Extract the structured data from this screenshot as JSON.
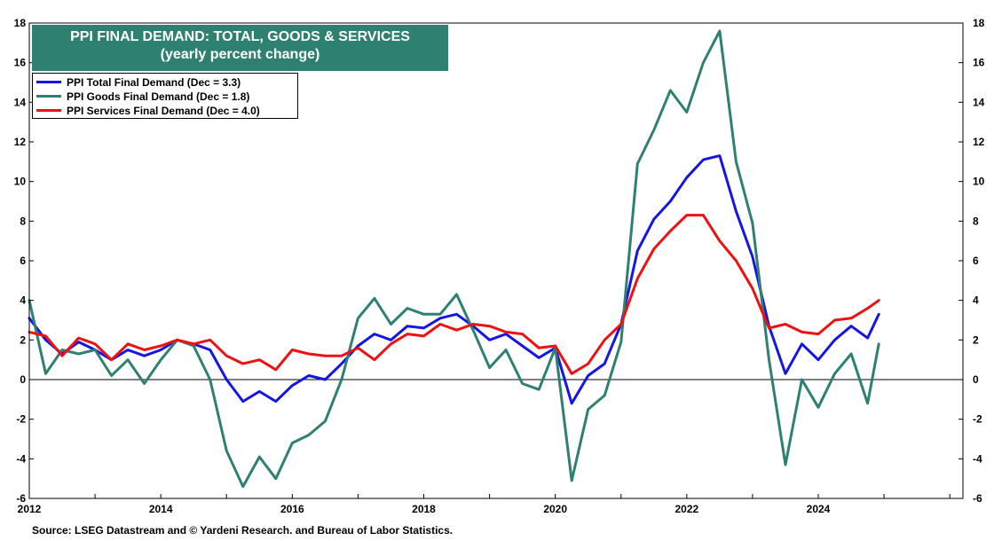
{
  "title": {
    "line1": "PPI FINAL DEMAND: TOTAL, GOODS & SERVICES",
    "line2": "(yearly percent change)"
  },
  "source": "Source: LSEG Datastream and © Yardeni Research. and Bureau of Labor Statistics.",
  "colors": {
    "total": "#1515e6",
    "goods": "#2e8070",
    "services": "#ee1111",
    "title_bg": "#2e8070"
  },
  "chart_data": {
    "type": "line",
    "title": "PPI FINAL DEMAND: TOTAL, GOODS & SERVICES",
    "subtitle": "(yearly percent change)",
    "xlabel": "",
    "ylabel": "",
    "xlim": [
      2012,
      2026.2
    ],
    "ylim": [
      -6,
      18
    ],
    "y_ticks": [
      -6,
      -4,
      -2,
      0,
      2,
      4,
      6,
      8,
      10,
      12,
      14,
      16,
      18
    ],
    "x_ticks": [
      "2012",
      "2014",
      "2016",
      "2018",
      "2020",
      "2022",
      "2024"
    ],
    "legend_position": "top-left",
    "reference_line": 0,
    "series": [
      {
        "name": "PPI Total Final Demand (Dec = 3.3)",
        "color": "#1515e6",
        "x": [
          2012.0,
          2012.25,
          2012.5,
          2012.75,
          2013.0,
          2013.25,
          2013.5,
          2013.75,
          2014.0,
          2014.25,
          2014.5,
          2014.75,
          2015.0,
          2015.25,
          2015.5,
          2015.75,
          2016.0,
          2016.25,
          2016.5,
          2016.75,
          2017.0,
          2017.25,
          2017.5,
          2017.75,
          2018.0,
          2018.25,
          2018.5,
          2018.75,
          2019.0,
          2019.25,
          2019.5,
          2019.75,
          2020.0,
          2020.25,
          2020.5,
          2020.75,
          2021.0,
          2021.25,
          2021.5,
          2021.75,
          2022.0,
          2022.25,
          2022.5,
          2022.75,
          2023.0,
          2023.25,
          2023.5,
          2023.75,
          2024.0,
          2024.25,
          2024.5,
          2024.75,
          2024.92
        ],
        "y": [
          3.1,
          2.0,
          1.3,
          1.9,
          1.5,
          1.0,
          1.5,
          1.2,
          1.5,
          2.0,
          1.8,
          1.5,
          0.0,
          -1.1,
          -0.6,
          -1.1,
          -0.3,
          0.2,
          0.0,
          0.8,
          1.7,
          2.3,
          2.0,
          2.7,
          2.6,
          3.1,
          3.3,
          2.7,
          2.0,
          2.3,
          1.7,
          1.1,
          1.6,
          -1.2,
          0.2,
          0.8,
          2.8,
          6.5,
          8.1,
          9.0,
          10.2,
          11.1,
          11.3,
          8.5,
          6.2,
          2.7,
          0.3,
          1.8,
          1.0,
          2.0,
          2.7,
          2.1,
          3.3
        ]
      },
      {
        "name": "PPI Goods Final Demand (Dec = 1.8)",
        "color": "#2e8070",
        "x": [
          2012.0,
          2012.25,
          2012.5,
          2012.75,
          2013.0,
          2013.25,
          2013.5,
          2013.75,
          2014.0,
          2014.25,
          2014.5,
          2014.75,
          2015.0,
          2015.25,
          2015.5,
          2015.75,
          2016.0,
          2016.25,
          2016.5,
          2016.75,
          2017.0,
          2017.25,
          2017.5,
          2017.75,
          2018.0,
          2018.25,
          2018.5,
          2018.75,
          2019.0,
          2019.25,
          2019.5,
          2019.75,
          2020.0,
          2020.25,
          2020.5,
          2020.75,
          2021.0,
          2021.25,
          2021.5,
          2021.75,
          2022.0,
          2022.25,
          2022.5,
          2022.75,
          2023.0,
          2023.25,
          2023.5,
          2023.75,
          2024.0,
          2024.25,
          2024.5,
          2024.75,
          2024.92
        ],
        "y": [
          4.0,
          0.3,
          1.5,
          1.3,
          1.5,
          0.2,
          1.0,
          -0.2,
          1.0,
          2.0,
          1.7,
          0.0,
          -3.6,
          -5.4,
          -3.9,
          -5.0,
          -3.2,
          -2.8,
          -2.1,
          0.0,
          3.1,
          4.1,
          2.8,
          3.6,
          3.3,
          3.3,
          4.3,
          2.5,
          0.6,
          1.5,
          -0.2,
          -0.5,
          1.6,
          -5.1,
          -1.5,
          -0.8,
          1.9,
          10.9,
          12.6,
          14.6,
          13.5,
          16.0,
          17.6,
          11.0,
          7.9,
          1.0,
          -4.3,
          0.0,
          -1.4,
          0.3,
          1.3,
          -1.2,
          1.8
        ]
      },
      {
        "name": "PPI Services Final Demand (Dec = 4.0)",
        "color": "#ee1111",
        "x": [
          2012.0,
          2012.25,
          2012.5,
          2012.75,
          2013.0,
          2013.25,
          2013.5,
          2013.75,
          2014.0,
          2014.25,
          2014.5,
          2014.75,
          2015.0,
          2015.25,
          2015.5,
          2015.75,
          2016.0,
          2016.25,
          2016.5,
          2016.75,
          2017.0,
          2017.25,
          2017.5,
          2017.75,
          2018.0,
          2018.25,
          2018.5,
          2018.75,
          2019.0,
          2019.25,
          2019.5,
          2019.75,
          2020.0,
          2020.25,
          2020.5,
          2020.75,
          2021.0,
          2021.25,
          2021.5,
          2021.75,
          2022.0,
          2022.25,
          2022.5,
          2022.75,
          2023.0,
          2023.25,
          2023.5,
          2023.75,
          2024.0,
          2024.25,
          2024.5,
          2024.75,
          2024.92
        ],
        "y": [
          2.4,
          2.2,
          1.2,
          2.1,
          1.8,
          1.0,
          1.8,
          1.5,
          1.7,
          2.0,
          1.8,
          2.0,
          1.2,
          0.8,
          1.0,
          0.5,
          1.5,
          1.3,
          1.2,
          1.2,
          1.6,
          1.0,
          1.8,
          2.3,
          2.2,
          2.8,
          2.5,
          2.8,
          2.7,
          2.4,
          2.3,
          1.6,
          1.7,
          0.3,
          0.8,
          2.0,
          2.8,
          5.1,
          6.6,
          7.5,
          8.3,
          8.3,
          7.0,
          6.0,
          4.6,
          2.6,
          2.8,
          2.4,
          2.3,
          3.0,
          3.1,
          3.6,
          4.0
        ]
      }
    ]
  }
}
